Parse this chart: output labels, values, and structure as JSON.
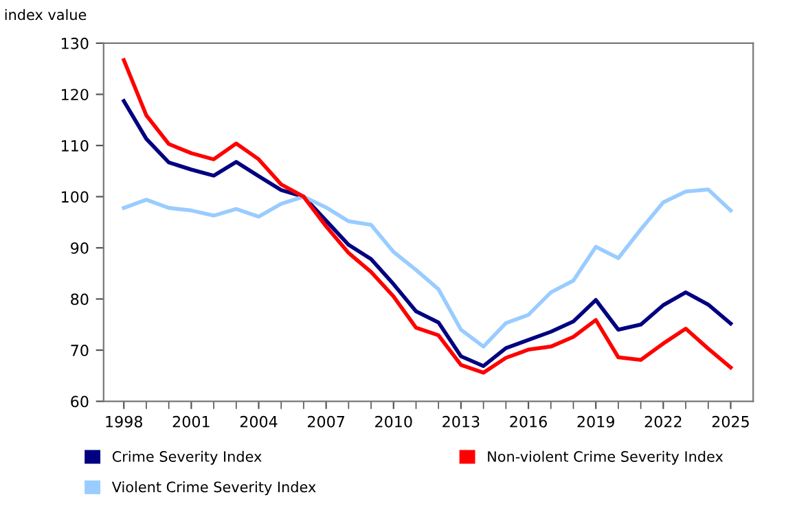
{
  "chart_data": {
    "type": "line",
    "ylabel": "index value",
    "x": [
      1998,
      1999,
      2000,
      2001,
      2002,
      2003,
      2004,
      2005,
      2006,
      2007,
      2008,
      2009,
      2010,
      2011,
      2012,
      2013,
      2014,
      2015,
      2016,
      2017,
      2018,
      2019,
      2020,
      2021,
      2022,
      2023,
      2024,
      2025
    ],
    "xlim": [
      1997.1,
      2026
    ],
    "xticks": [
      1998,
      2001,
      2004,
      2007,
      2010,
      2013,
      2016,
      2019,
      2022,
      2025
    ],
    "ylim": [
      60,
      130
    ],
    "yticks": [
      60,
      70,
      80,
      90,
      100,
      110,
      120,
      130
    ],
    "grid": false,
    "legend": "bottom",
    "marker": "none",
    "line_style": "solid",
    "series": [
      {
        "name": "Crime Severity Index",
        "color": "#000080",
        "values": [
          118.7,
          111.3,
          106.7,
          105.3,
          104.1,
          106.8,
          104.0,
          101.3,
          100,
          95.3,
          90.6,
          87.8,
          82.9,
          77.6,
          75.4,
          68.8,
          66.9,
          70.4,
          72.0,
          73.6,
          75.6,
          79.8,
          74.0,
          75.0,
          78.8,
          81.3,
          78.9,
          75.2
        ]
      },
      {
        "name": "Violent Crime Severity Index",
        "color": "#99ccff",
        "values": [
          97.8,
          99.4,
          97.8,
          97.3,
          96.3,
          97.6,
          96.1,
          98.6,
          100,
          97.9,
          95.2,
          94.5,
          89.2,
          85.7,
          81.9,
          74.0,
          70.7,
          75.3,
          76.9,
          81.3,
          83.6,
          90.2,
          88.0,
          93.6,
          98.9,
          101.0,
          101.4,
          97.3
        ]
      },
      {
        "name": "Non-violent Crime Severity Index",
        "color": "#ff0000",
        "values": [
          126.7,
          115.9,
          110.3,
          108.5,
          107.3,
          110.4,
          107.3,
          102.4,
          100,
          94.2,
          89.0,
          85.3,
          80.5,
          74.4,
          72.9,
          67.1,
          65.6,
          68.5,
          70.1,
          70.7,
          72.6,
          75.9,
          68.6,
          68.1,
          71.3,
          74.2,
          70.3,
          66.6
        ]
      }
    ]
  }
}
